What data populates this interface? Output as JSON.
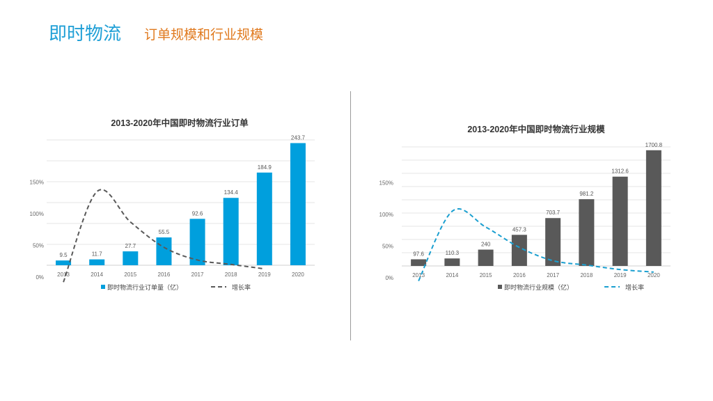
{
  "header": {
    "title": "即时物流",
    "subtitle": "订单规模和行业规模"
  },
  "colors": {
    "title": "#1f9fd6",
    "subtitle": "#e07a1f",
    "chart1_bar": "#009fdd",
    "chart1_line": "#595959",
    "chart2_bar": "#595959",
    "chart2_line": "#1a9fd0"
  },
  "chart_data": [
    {
      "type": "bar",
      "title": "2013-2020年中国即时物流行业订单",
      "categories": [
        "2013",
        "2014",
        "2015",
        "2016",
        "2017",
        "2018",
        "2019",
        "2020"
      ],
      "series": [
        {
          "name": "即时物流行业订单量（亿）",
          "type": "bar",
          "values": [
            9.5,
            11.7,
            27.7,
            55.5,
            92.6,
            134.4,
            184.9,
            243.7
          ],
          "labels": [
            "9.5",
            "11.7",
            "27.7",
            "55.5",
            "92.6",
            "134.4",
            "184.9",
            "243.7"
          ]
        },
        {
          "name": "增长率",
          "type": "line",
          "dashed": true,
          "values": [
            null,
            135,
            87,
            47,
            27,
            20,
            13,
            null
          ]
        }
      ],
      "y_ticks": [
        "0%",
        "50%",
        "100%",
        "150%"
      ],
      "y_pct_range": [
        0,
        200
      ],
      "grid": true,
      "legend": "bottom"
    },
    {
      "type": "bar",
      "title": "2013-2020年中国即时物流行业规模",
      "categories": [
        "2013",
        "2014",
        "2015",
        "2016",
        "2017",
        "2018",
        "2019",
        "2020"
      ],
      "series": [
        {
          "name": "即时物流行业规模（亿）",
          "type": "bar",
          "values": [
            97.6,
            110.3,
            240,
            457.3,
            703.7,
            981.2,
            1312.6,
            1700.8
          ],
          "labels": [
            "97.6",
            "110.3",
            "240",
            "457.3",
            "703.7",
            "981.2",
            "1312.6",
            "1700.8"
          ]
        },
        {
          "name": "增长率",
          "type": "line",
          "dashed": true,
          "values": [
            -5,
            105,
            80,
            48,
            27,
            20,
            13,
            9
          ]
        }
      ],
      "y_ticks": [
        "0%",
        "50%",
        "100%",
        "150%"
      ],
      "y_pct_range": [
        0,
        200
      ],
      "grid": true,
      "legend": "bottom"
    }
  ]
}
